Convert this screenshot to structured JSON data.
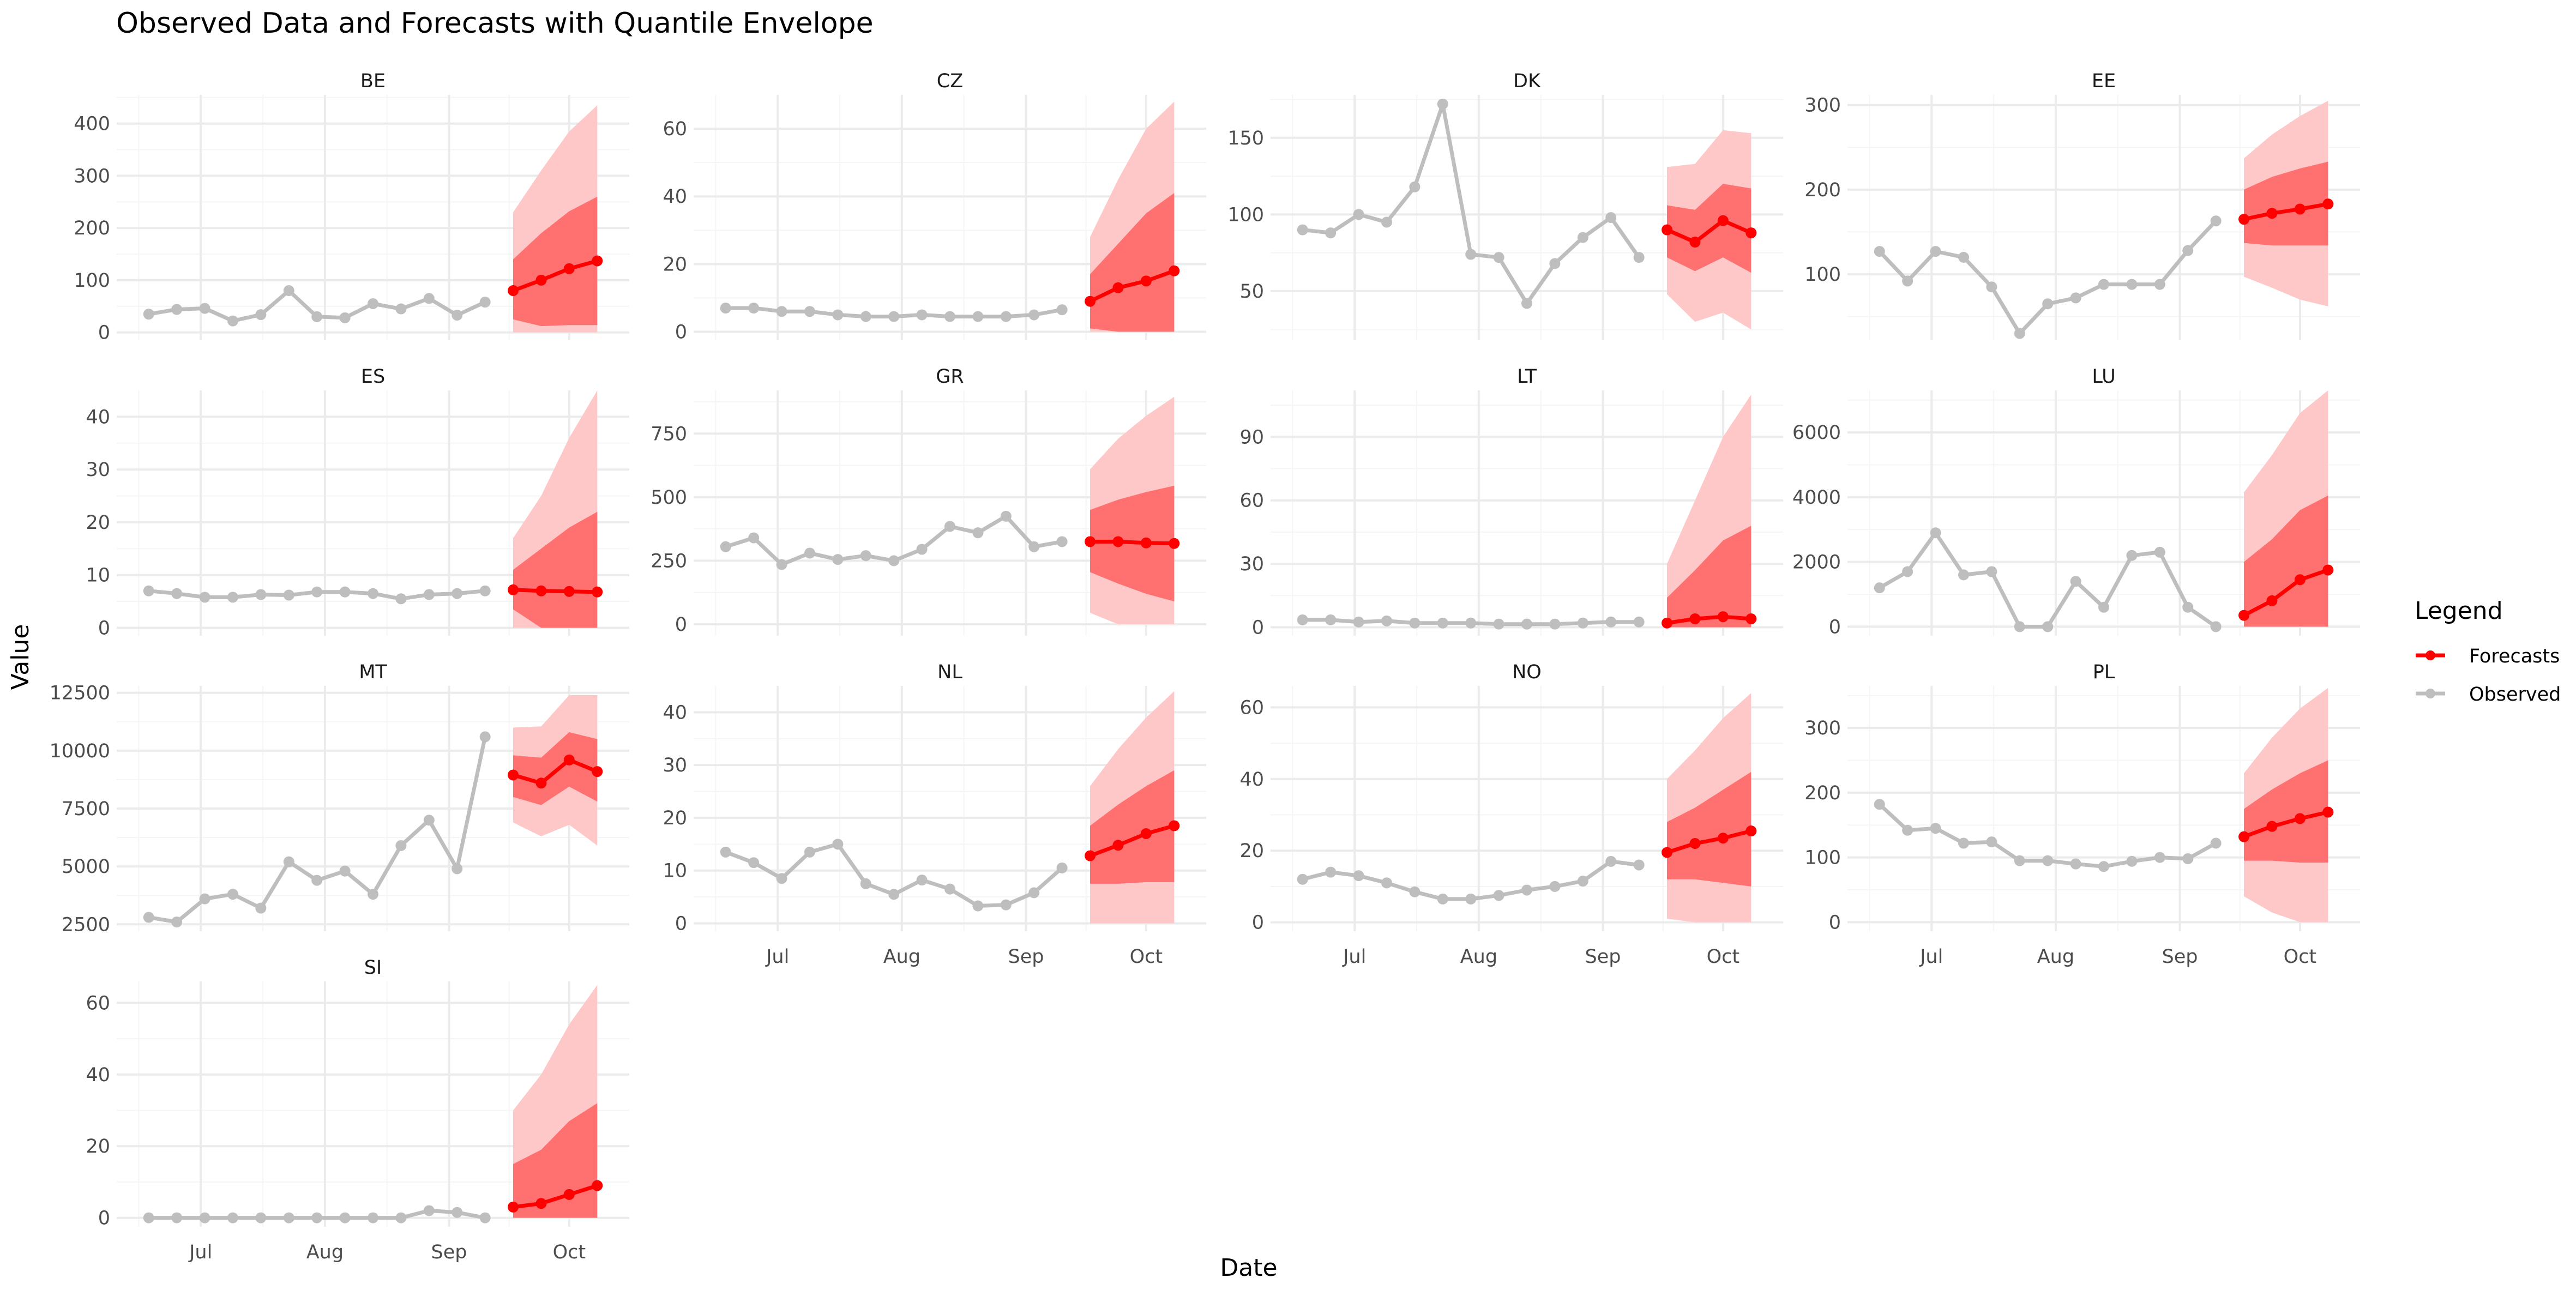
{
  "chart_data": {
    "type": "line",
    "title": "Observed Data and Forecasts with Quantile Envelope",
    "xlabel": "Date",
    "ylabel": "Value",
    "x_tick_labels": [
      "Jul",
      "Aug",
      "Sep",
      "Oct"
    ],
    "grid": true,
    "legend": {
      "title": "Legend",
      "position": "right",
      "entries": [
        "Forecasts",
        "Observed"
      ]
    },
    "colors": {
      "observed": "#bebebe",
      "forecast": "#ff0000",
      "inner_band": "#ff7070",
      "outer_band": "#ffc8c8",
      "grid_major": "#ebebeb",
      "grid_minor": "#f5f5f5",
      "text": "#4d4d4d"
    },
    "observed_dates": [
      "2023-06-18",
      "2023-06-25",
      "2023-07-02",
      "2023-07-09",
      "2023-07-16",
      "2023-07-23",
      "2023-07-30",
      "2023-08-06",
      "2023-08-13",
      "2023-08-20",
      "2023-08-27",
      "2023-09-03",
      "2023-09-10"
    ],
    "forecast_dates": [
      "2023-09-17",
      "2023-09-24",
      "2023-10-01",
      "2023-10-08"
    ],
    "panels": [
      {
        "name": "BE",
        "y_ticks": [
          0,
          100,
          200,
          300,
          400
        ],
        "ylim": [
          -15,
          455
        ],
        "observed": [
          35,
          44,
          46,
          22,
          34,
          80,
          30,
          28,
          55,
          45,
          65,
          33,
          58
        ],
        "forecast": [
          80,
          100,
          122,
          137
        ],
        "q50_low": [
          25,
          12,
          14,
          14
        ],
        "q50_high": [
          140,
          190,
          232,
          260
        ],
        "q95_low": [
          0,
          0,
          0,
          0
        ],
        "q95_high": [
          230,
          310,
          385,
          435
        ]
      },
      {
        "name": "CZ",
        "y_ticks": [
          0,
          20,
          40,
          60
        ],
        "ylim": [
          -2.5,
          70
        ],
        "observed": [
          7,
          7,
          6,
          6,
          5,
          4.5,
          4.5,
          5,
          4.5,
          4.5,
          4.5,
          5,
          6.5
        ],
        "forecast": [
          9,
          13,
          15,
          18
        ],
        "q50_low": [
          1,
          0,
          0,
          0
        ],
        "q50_high": [
          17,
          26,
          35,
          41
        ],
        "q95_low": [
          0,
          0,
          0,
          0
        ],
        "q95_high": [
          28,
          45,
          60,
          68
        ]
      },
      {
        "name": "DK",
        "y_ticks": [
          50,
          100,
          150
        ],
        "ylim": [
          18,
          178
        ],
        "observed": [
          90,
          88,
          100,
          95,
          118,
          172,
          74,
          72,
          42,
          68,
          85,
          98,
          72
        ],
        "forecast": [
          90,
          82,
          96,
          88
        ],
        "q50_low": [
          72,
          63,
          72,
          62
        ],
        "q50_high": [
          106,
          103,
          120,
          117
        ],
        "q95_low": [
          48,
          30,
          36,
          25
        ],
        "q95_high": [
          131,
          133,
          155,
          153
        ]
      },
      {
        "name": "EE",
        "y_ticks": [
          100,
          200,
          300
        ],
        "ylim": [
          22,
          312
        ],
        "observed": [
          127,
          92,
          127,
          120,
          85,
          30,
          65,
          72,
          88,
          88,
          88,
          128,
          163
        ],
        "forecast": [
          165,
          172,
          177,
          183
        ],
        "q50_low": [
          137,
          134,
          134,
          134
        ],
        "q50_high": [
          200,
          215,
          225,
          233
        ],
        "q95_low": [
          97,
          84,
          70,
          62
        ],
        "q95_high": [
          237,
          265,
          287,
          305
        ]
      },
      {
        "name": "ES",
        "y_ticks": [
          0,
          10,
          20,
          30,
          40
        ],
        "ylim": [
          -1.5,
          45
        ],
        "observed": [
          7,
          6.5,
          5.8,
          5.8,
          6.3,
          6.2,
          6.8,
          6.8,
          6.5,
          5.5,
          6.3,
          6.5,
          7
        ],
        "forecast": [
          7.2,
          7,
          6.9,
          6.8
        ],
        "q50_low": [
          3.5,
          0,
          0,
          0
        ],
        "q50_high": [
          11,
          15,
          19,
          22
        ],
        "q95_low": [
          0,
          0,
          0,
          0
        ],
        "q95_high": [
          17,
          25,
          36,
          45
        ]
      },
      {
        "name": "GR",
        "y_ticks": [
          0,
          250,
          500,
          750
        ],
        "ylim": [
          -45,
          920
        ],
        "observed": [
          305,
          340,
          235,
          280,
          255,
          270,
          250,
          295,
          385,
          360,
          425,
          305,
          325
        ],
        "forecast": [
          325,
          325,
          320,
          318
        ],
        "q50_low": [
          205,
          160,
          120,
          90
        ],
        "q50_high": [
          450,
          490,
          520,
          545
        ],
        "q95_low": [
          45,
          0,
          0,
          0
        ],
        "q95_high": [
          610,
          730,
          820,
          895
        ]
      },
      {
        "name": "LT",
        "y_ticks": [
          0,
          30,
          60,
          90
        ],
        "ylim": [
          -4,
          112
        ],
        "observed": [
          3.5,
          3.5,
          2.5,
          3,
          2,
          2,
          2,
          1.5,
          1.5,
          1.5,
          2,
          2.5,
          2.5
        ],
        "forecast": [
          2,
          4,
          5,
          4
        ],
        "q50_low": [
          0,
          0,
          0,
          0
        ],
        "q50_high": [
          14,
          27,
          41,
          48
        ],
        "q95_low": [
          0,
          0,
          0,
          0
        ],
        "q95_high": [
          30,
          60,
          90,
          110
        ]
      },
      {
        "name": "LU",
        "y_ticks": [
          0,
          2000,
          4000,
          6000
        ],
        "ylim": [
          -280,
          7300
        ],
        "observed": [
          1200,
          1700,
          2900,
          1600,
          1700,
          0,
          0,
          1400,
          600,
          2200,
          2300,
          600,
          0
        ],
        "forecast": [
          350,
          800,
          1450,
          1750
        ],
        "q50_low": [
          0,
          0,
          0,
          0
        ],
        "q50_high": [
          2000,
          2700,
          3600,
          4050
        ],
        "q95_low": [
          0,
          0,
          0,
          0
        ],
        "q95_high": [
          4150,
          5300,
          6600,
          7300
        ]
      },
      {
        "name": "MT",
        "y_ticks": [
          2500,
          5000,
          7500,
          10000,
          12500
        ],
        "ylim": [
          2200,
          12800
        ],
        "observed": [
          2800,
          2600,
          3600,
          3800,
          3200,
          5200,
          4400,
          4800,
          3800,
          5900,
          7000,
          4900,
          10600
        ],
        "forecast": [
          8950,
          8600,
          9600,
          9100
        ],
        "q50_low": [
          8000,
          7650,
          8450,
          7800
        ],
        "q50_high": [
          9800,
          9700,
          10800,
          10500
        ],
        "q95_low": [
          6900,
          6300,
          6800,
          5900
        ],
        "q95_high": [
          11000,
          11050,
          12400,
          12400
        ]
      },
      {
        "name": "NL",
        "y_ticks": [
          0,
          10,
          20,
          30,
          40
        ],
        "ylim": [
          -1.5,
          45
        ],
        "observed": [
          13.5,
          11.5,
          8.5,
          13.5,
          15,
          7.5,
          5.5,
          8.2,
          6.5,
          3.3,
          3.5,
          5.8,
          10.5
        ],
        "forecast": [
          12.8,
          14.8,
          17,
          18.5
        ],
        "q50_low": [
          7.5,
          7.5,
          7.8,
          7.8
        ],
        "q50_high": [
          18.5,
          22.5,
          26,
          29
        ],
        "q95_low": [
          0,
          0,
          0,
          0
        ],
        "q95_high": [
          26,
          33,
          39,
          44
        ]
      },
      {
        "name": "NO",
        "y_ticks": [
          0,
          20,
          40,
          60
        ],
        "ylim": [
          -2.5,
          66
        ],
        "observed": [
          12,
          14,
          13,
          11,
          8.5,
          6.5,
          6.5,
          7.5,
          9,
          10,
          11.5,
          17,
          16
        ],
        "forecast": [
          19.5,
          22,
          23.5,
          25.5
        ],
        "q50_low": [
          12,
          12,
          11,
          10
        ],
        "q50_high": [
          28,
          32,
          37,
          42
        ],
        "q95_low": [
          1,
          0,
          0,
          0
        ],
        "q95_high": [
          40,
          48,
          57,
          64
        ]
      },
      {
        "name": "PL",
        "y_ticks": [
          0,
          100,
          200,
          300
        ],
        "ylim": [
          -14,
          365
        ],
        "observed": [
          182,
          142,
          145,
          122,
          124,
          95,
          95,
          90,
          86,
          94,
          100,
          98,
          122
        ],
        "forecast": [
          132,
          148,
          160,
          170
        ],
        "q50_low": [
          95,
          95,
          92,
          92
        ],
        "q50_high": [
          175,
          205,
          230,
          250
        ],
        "q95_low": [
          40,
          15,
          0,
          0
        ],
        "q95_high": [
          230,
          285,
          330,
          362
        ]
      },
      {
        "name": "SI",
        "y_ticks": [
          0,
          20,
          40,
          60
        ],
        "ylim": [
          -2.5,
          66
        ],
        "observed": [
          0,
          0,
          0,
          0,
          0,
          0,
          0,
          0,
          0,
          0,
          2,
          1.5,
          0
        ],
        "forecast": [
          3,
          4,
          6.5,
          9
        ],
        "q50_low": [
          0,
          0,
          0,
          0
        ],
        "q50_high": [
          15,
          19,
          27,
          32
        ],
        "q95_low": [
          0,
          0,
          0,
          0
        ],
        "q95_high": [
          30,
          40,
          54,
          65
        ]
      }
    ]
  }
}
